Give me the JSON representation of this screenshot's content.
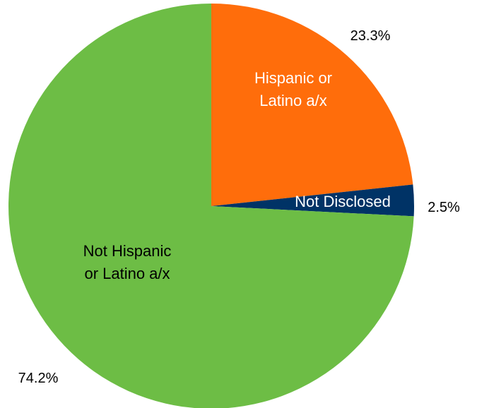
{
  "chart_data": {
    "type": "pie",
    "slices": [
      {
        "label_lines": [
          "Hispanic or",
          "Latino a/x"
        ],
        "value": 23.3,
        "value_label": "23.3%",
        "color": "#FF6D0B",
        "label_color": "#FFFFFF"
      },
      {
        "label_lines": [
          "Not Disclosed"
        ],
        "value": 2.5,
        "value_label": "2.5%",
        "color": "#003366",
        "label_color": "#FFFFFF"
      },
      {
        "label_lines": [
          "Not Hispanic",
          "or Latino a/x"
        ],
        "value": 74.2,
        "value_label": "74.2%",
        "color": "#6DBD45",
        "label_color": "#000000"
      }
    ]
  }
}
